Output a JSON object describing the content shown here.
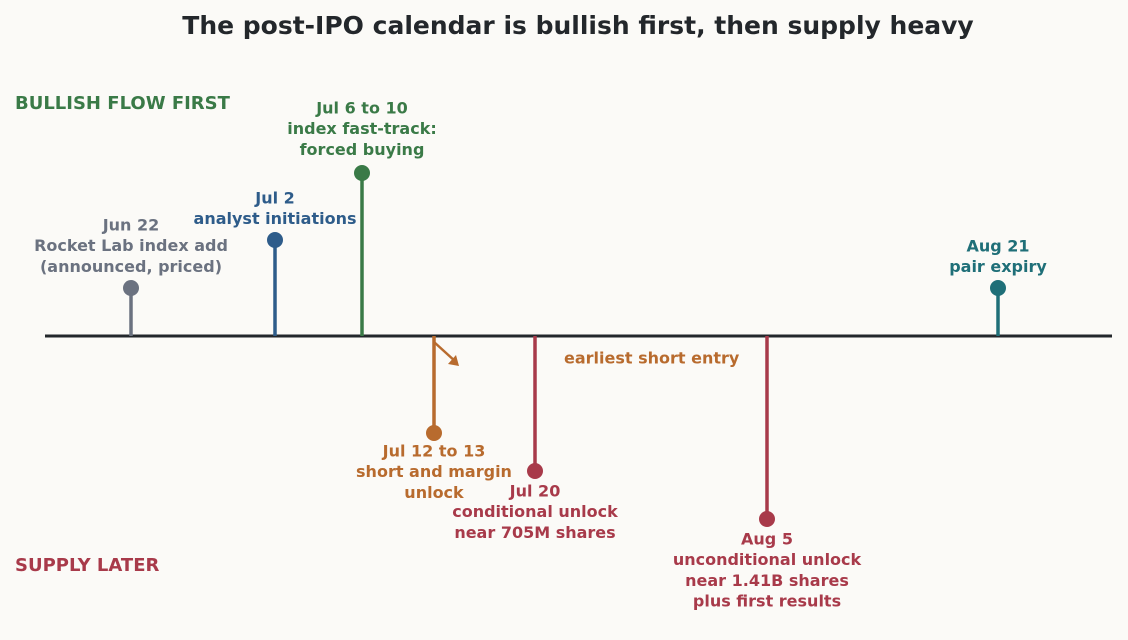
{
  "title": "The post-IPO calendar is bullish first, then supply heavy",
  "zones": {
    "top": {
      "label": "BULLISH FLOW FIRST",
      "color": "#3a7a47"
    },
    "bottom": {
      "label": "SUPPLY LATER",
      "color": "#a83a4a"
    }
  },
  "events": [
    {
      "date": "Jun 22",
      "lines": [
        "Rocket Lab index add",
        "(announced, priced)"
      ],
      "color": "#6b7280"
    },
    {
      "date": "Jul 2",
      "lines": [
        "analyst initiations"
      ],
      "color": "#2e5c8a"
    },
    {
      "date": "Jul 6 to 10",
      "lines": [
        "index fast-track:",
        "forced buying"
      ],
      "color": "#3a7a47"
    },
    {
      "date": "Jul 12 to 13",
      "lines": [
        "short and margin",
        "unlock"
      ],
      "color": "#b86b2e"
    },
    {
      "date": "Jul 20",
      "lines": [
        "conditional unlock",
        "near 705M shares"
      ],
      "color": "#a83a4a"
    },
    {
      "date": "Aug 5",
      "lines": [
        "unconditional unlock",
        "near 1.41B shares",
        "plus first results"
      ],
      "color": "#a83a4a"
    },
    {
      "date": "Aug 21",
      "lines": [
        "pair expiry"
      ],
      "color": "#1f6f78"
    }
  ],
  "annotation": {
    "text": "earliest short entry",
    "color": "#b86b2e"
  }
}
